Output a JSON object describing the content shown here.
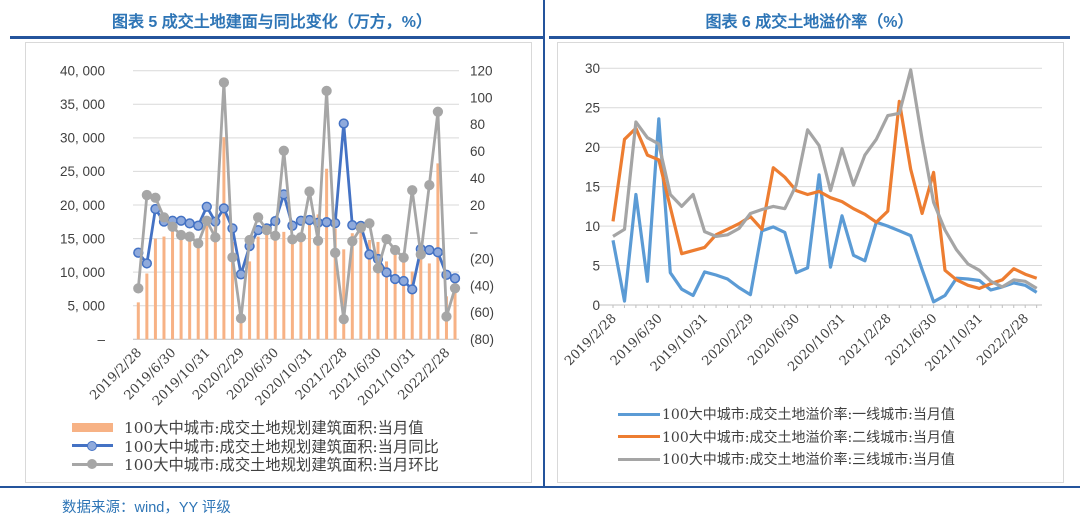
{
  "left_panel": {
    "title": "图表 5 成交土地建面与同比变化（万方，%）"
  },
  "right_panel": {
    "title": "图表 6 成交土地溢价率（%）"
  },
  "source": "数据来源：wind，YY 评级",
  "colors": {
    "rule": "#24549C",
    "title": "#2E75B6",
    "grid": "#D9D9D9",
    "axis_line": "#BFBFBF",
    "tick_text": "#404040",
    "legend_text": "#404040",
    "bar": "#F7B285",
    "yoy_line": "#4472C4",
    "yoy_marker_fill": "#8FAADC",
    "mom_line": "#A6A6A6",
    "tier1": "#5B9BD5",
    "tier2": "#ED7D31",
    "tier3": "#A5A5A5"
  },
  "chart_data": [
    {
      "id": "left",
      "type": "bar+line",
      "title": "图表 5 成交土地建面与同比变化（万方，%）",
      "x": [
        "2019/2",
        "2019/3",
        "2019/4",
        "2019/5",
        "2019/6",
        "2019/7",
        "2019/8",
        "2019/9",
        "2019/10",
        "2019/11",
        "2019/12",
        "2020/1",
        "2020/2",
        "2020/3",
        "2020/4",
        "2020/5",
        "2020/6",
        "2020/7",
        "2020/8",
        "2020/9",
        "2020/10",
        "2020/11",
        "2020/12",
        "2021/1",
        "2021/2",
        "2021/3",
        "2021/4",
        "2021/5",
        "2021/6",
        "2021/7",
        "2021/8",
        "2021/9",
        "2021/10",
        "2021/11",
        "2021/12",
        "2022/1",
        "2022/2",
        "2022/3"
      ],
      "x_tick_labels": [
        "2019/2/28",
        "2019/6/30",
        "2019/10/31",
        "2020/2/29",
        "2020/6/30",
        "2020/10/31",
        "2021/2/28",
        "2021/6/30",
        "2021/10/31",
        "2022/2/28"
      ],
      "left_axis": {
        "min": 0,
        "max": 40000,
        "labels": [
          "40, 000",
          "35, 000",
          "30, 000",
          "25, 000",
          "20, 000",
          "15, 000",
          "10, 000",
          "5, 000",
          "–"
        ]
      },
      "right_axis": {
        "min": -80,
        "max": 120,
        "labels": [
          "120",
          "100",
          "80",
          "60",
          "40",
          "20",
          "–",
          "(20)",
          "(40)",
          "(60)",
          "(80)"
        ]
      },
      "series": [
        {
          "name": "100大中城市:成交土地规划建筑面积:当月值",
          "type": "bar",
          "axis": "left",
          "values": [
            5500,
            9800,
            15000,
            15300,
            17000,
            15300,
            15000,
            14500,
            17300,
            17300,
            30100,
            14500,
            4100,
            11600,
            15300,
            17000,
            16000,
            16000,
            15400,
            15500,
            17300,
            18600,
            25400,
            16500,
            13400,
            15800,
            17000,
            14800,
            14500,
            11600,
            12800,
            11600,
            10100,
            12900,
            11300,
            26200,
            6400,
            9000
          ]
        },
        {
          "name": "100大中城市:成交土地规划建筑面积:当月同比",
          "type": "line",
          "axis": "right",
          "marker": true,
          "values": [
            -15.5,
            -23.5,
            17,
            7.6,
            8.3,
            8.3,
            6.3,
            4.6,
            18.7,
            7.6,
            17.5,
            2.6,
            -31.6,
            -10.6,
            1.3,
            2.6,
            8,
            27.9,
            4.6,
            8.3,
            8.8,
            6.8,
            7.2,
            6.5,
            80.7,
            5,
            4.4,
            -16.8,
            -20.2,
            -30.2,
            -35.1,
            -36.6,
            -42.8,
            -12.8,
            -13.5,
            -15.2,
            -32,
            -34.6
          ]
        },
        {
          "name": "100大中城市:成交土地规划建筑面积:当月环比",
          "type": "line",
          "axis": "right",
          "marker": true,
          "values": [
            -42.1,
            27.4,
            25.4,
            10.8,
            3.8,
            -2.4,
            -3.6,
            -8.6,
            8.3,
            -4.1,
            111.2,
            -19,
            -64.4,
            -6.1,
            10.8,
            1.3,
            -2.9,
            60.4,
            -5.6,
            -4,
            30,
            -6.6,
            105,
            -15.6,
            -65,
            -7,
            3,
            6.3,
            -27.2,
            -5.4,
            -13.5,
            -19.2,
            31,
            -16.8,
            34.8,
            89.4,
            -63,
            -42
          ]
        }
      ]
    },
    {
      "id": "right",
      "type": "line",
      "title": "图表 6 成交土地溢价率（%）",
      "x": [
        "2019/2",
        "2019/3",
        "2019/4",
        "2019/5",
        "2019/6",
        "2019/7",
        "2019/8",
        "2019/9",
        "2019/10",
        "2019/11",
        "2019/12",
        "2020/1",
        "2020/2",
        "2020/3",
        "2020/4",
        "2020/5",
        "2020/6",
        "2020/7",
        "2020/8",
        "2020/9",
        "2020/10",
        "2020/11",
        "2020/12",
        "2021/1",
        "2021/2",
        "2021/3",
        "2021/4",
        "2021/5",
        "2021/6",
        "2021/7",
        "2021/8",
        "2021/9",
        "2021/10",
        "2021/11",
        "2021/12",
        "2022/1",
        "2022/2",
        "2022/3"
      ],
      "x_tick_labels": [
        "2019/2/28",
        "2019/6/30",
        "2019/10/31",
        "2020/2/29",
        "2020/6/30",
        "2020/10/31",
        "2021/2/28",
        "2021/6/30",
        "2021/10/31",
        "2022/2/28"
      ],
      "y_axis": {
        "min": 0,
        "max": 30,
        "labels": [
          "30",
          "25",
          "20",
          "15",
          "10",
          "5",
          "0"
        ]
      },
      "series": [
        {
          "name": "100大中城市:成交土地溢价率:一线城市:当月值",
          "type": "line",
          "axis": "left",
          "marker": false,
          "values": [
            8.2,
            0.5,
            14,
            3,
            23.6,
            4.1,
            2,
            1.2,
            4.2,
            3.8,
            3.3,
            2.2,
            1.3,
            9.4,
            9.9,
            9.2,
            4.1,
            4.7,
            16.5,
            4.8,
            11.3,
            6.3,
            5.6,
            10.5,
            10,
            9.4,
            8.8,
            4.5,
            0.4,
            1.2,
            3.4,
            3.3,
            3.1,
            1.9,
            2.3,
            2.8,
            2.5,
            1.6
          ]
        },
        {
          "name": "100大中城市:成交土地溢价率:二线城市:当月值",
          "type": "line",
          "axis": "left",
          "marker": false,
          "values": [
            10.6,
            21,
            22.4,
            19,
            18.4,
            12.4,
            6.5,
            6.9,
            7.3,
            8.9,
            9.6,
            10.3,
            11.2,
            9.6,
            17.4,
            16.2,
            14.5,
            14,
            14.4,
            13.6,
            13.1,
            12.2,
            11.5,
            10.5,
            11.9,
            25.8,
            17.2,
            11.6,
            16.8,
            4.4,
            3.2,
            2.5,
            2.1,
            2.7,
            3.2,
            4.6,
            3.9,
            3.4
          ]
        },
        {
          "name": "100大中城市:成交土地溢价率:三线城市:当月值",
          "type": "line",
          "axis": "left",
          "marker": false,
          "values": [
            8.7,
            9.6,
            23.2,
            21.2,
            20.4,
            14,
            12.5,
            14,
            9.3,
            8.7,
            8.9,
            9.7,
            11.6,
            12.1,
            12.5,
            12.2,
            15.2,
            22.2,
            20.2,
            14.5,
            19.8,
            15.2,
            19,
            21,
            24,
            24.3,
            29.8,
            21,
            13,
            9.5,
            7,
            5.2,
            4.4,
            3,
            2.3,
            3.2,
            3,
            2.1
          ]
        }
      ]
    }
  ]
}
